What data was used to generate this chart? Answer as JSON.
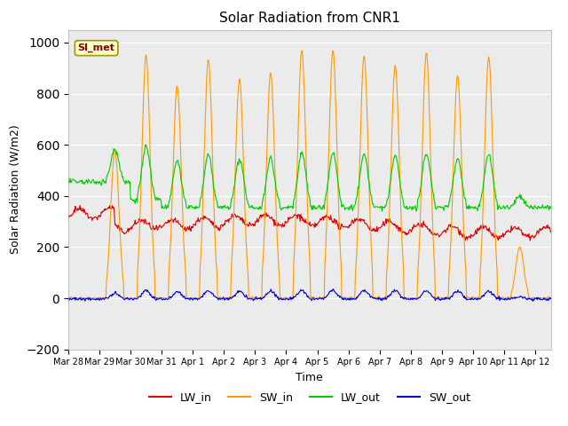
{
  "title": "Solar Radiation from CNR1",
  "xlabel": "Time",
  "ylabel": "Solar Radiation (W/m2)",
  "ylim": [
    -200,
    1050
  ],
  "yticks": [
    -200,
    0,
    200,
    400,
    600,
    800,
    1000
  ],
  "bg_color": "#ffffff",
  "plot_bg": "#ebebeb",
  "annotation_text": "SI_met",
  "annotation_bg": "#ffffcc",
  "annotation_border": "#999900",
  "annotation_text_color": "#880000",
  "line_colors": {
    "LW_in": "#dd0000",
    "SW_in": "#ff9900",
    "LW_out": "#00cc00",
    "SW_out": "#0000cc"
  },
  "x_tick_labels": [
    "Mar 28",
    "Mar 29",
    "Mar 30",
    "Mar 31",
    "Apr 1",
    "Apr 2",
    "Apr 3",
    "Apr 4",
    "Apr 5",
    "Apr 6",
    "Apr 7",
    "Apr 8",
    "Apr 9",
    "Apr 10",
    "Apr 11",
    "Apr 12"
  ],
  "grid_color": "#ffffff",
  "figsize": [
    6.4,
    4.8
  ],
  "dpi": 100
}
